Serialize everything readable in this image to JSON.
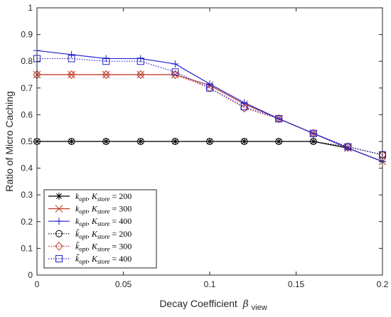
{
  "chart_data": {
    "type": "line",
    "xlabel": "Decay Coefficient",
    "xlabel_symbol": "β",
    "xlabel_subscript": "view",
    "ylabel": "Ratio of Micro Caching",
    "xlim": [
      0,
      0.2
    ],
    "ylim": [
      0,
      1
    ],
    "xticks": [
      0,
      0.05,
      0.1,
      0.15,
      0.2
    ],
    "xtick_labels": [
      "0",
      "0.05",
      "0.1",
      "0.15",
      "0.2"
    ],
    "yticks": [
      0,
      0.1,
      0.2,
      0.3,
      0.4,
      0.5,
      0.6,
      0.7,
      0.8,
      0.9,
      1
    ],
    "ytick_labels": [
      "0",
      "0.1",
      "0.2",
      "0.3",
      "0.4",
      "0.5",
      "0.6",
      "0.7",
      "0.8",
      "0.9",
      "1"
    ],
    "grid": false,
    "legend_position": "lower-left",
    "x": [
      0,
      0.02,
      0.04,
      0.06,
      0.08,
      0.1,
      0.12,
      0.14,
      0.16,
      0.18,
      0.2
    ],
    "series": [
      {
        "name": "k_opt, K_store = 200",
        "legend": {
          "k": "k",
          "k_sub": "opt",
          "tilde": false,
          "K": "K",
          "K_sub": "store",
          "eq": "= 200"
        },
        "color": "#000000",
        "dash": "solid",
        "marker": "asterisk",
        "values": [
          0.5,
          0.5,
          0.5,
          0.5,
          0.5,
          0.5,
          0.5,
          0.5,
          0.5,
          0.475,
          0.425
        ]
      },
      {
        "name": "k_opt, K_store = 300",
        "legend": {
          "k": "k",
          "k_sub": "opt",
          "tilde": false,
          "K": "K",
          "K_sub": "store",
          "eq": "= 300"
        },
        "color": "#c0392b",
        "dash": "solid",
        "marker": "x",
        "values": [
          0.75,
          0.75,
          0.75,
          0.75,
          0.75,
          0.71,
          0.64,
          0.585,
          0.53,
          0.475,
          0.425
        ]
      },
      {
        "name": "k_opt, K_store = 400",
        "legend": {
          "k": "k",
          "k_sub": "opt",
          "tilde": false,
          "K": "K",
          "K_sub": "store",
          "eq": "= 400"
        },
        "color": "#2222cc",
        "dash": "solid",
        "marker": "plus",
        "values": [
          0.84,
          0.825,
          0.81,
          0.81,
          0.79,
          0.715,
          0.645,
          0.585,
          0.53,
          0.475,
          0.425
        ]
      },
      {
        "name": "k̃_opt, K_store = 200",
        "legend": {
          "k": "k",
          "k_sub": "opt",
          "tilde": true,
          "K": "K",
          "K_sub": "store",
          "eq": "= 200"
        },
        "color": "#000000",
        "dash": "dotted",
        "marker": "circle",
        "values": [
          0.5,
          0.5,
          0.5,
          0.5,
          0.5,
          0.5,
          0.5,
          0.5,
          0.5,
          0.48,
          0.45
        ]
      },
      {
        "name": "k̃_opt, K_store = 300",
        "legend": {
          "k": "k",
          "k_sub": "opt",
          "tilde": true,
          "K": "K",
          "K_sub": "store",
          "eq": "= 300"
        },
        "color": "#c0392b",
        "dash": "dotted",
        "marker": "diamond",
        "values": [
          0.75,
          0.75,
          0.75,
          0.75,
          0.75,
          0.7,
          0.625,
          0.585,
          0.53,
          0.48,
          0.45
        ]
      },
      {
        "name": "k̃_opt, K_store = 400",
        "legend": {
          "k": "k",
          "k_sub": "opt",
          "tilde": true,
          "K": "K",
          "K_sub": "store",
          "eq": "= 400"
        },
        "color": "#2222cc",
        "dash": "dotted",
        "marker": "square",
        "values": [
          0.81,
          0.81,
          0.8,
          0.8,
          0.76,
          0.7,
          0.63,
          0.585,
          0.53,
          0.48,
          0.45
        ]
      }
    ]
  }
}
